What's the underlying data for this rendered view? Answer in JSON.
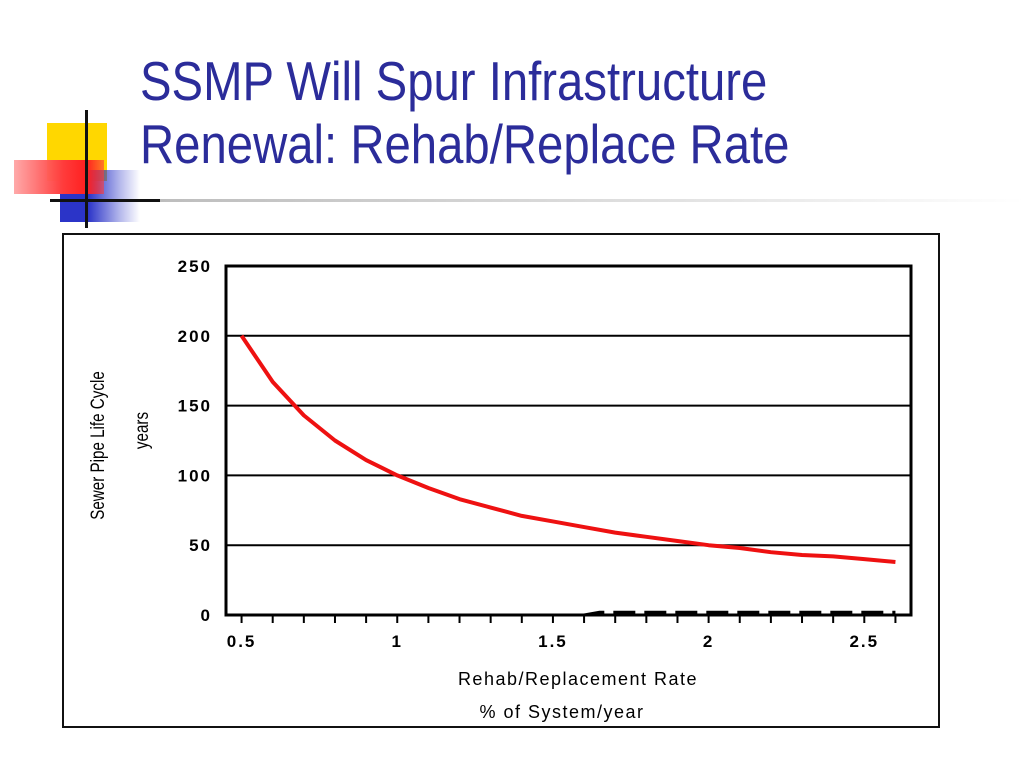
{
  "slide": {
    "title": "SSMP Will Spur Infrastructure\nRenewal: Rehab/Replace Rate"
  },
  "chart_data": {
    "type": "line",
    "xlabel_line1": "Rehab/Replacement Rate",
    "xlabel_line2": "% of System/year",
    "ylabel_line1": "Sewer Pipe Life Cycle",
    "ylabel_line2": "years",
    "xlim": [
      0.45,
      2.65
    ],
    "ylim": [
      0,
      250
    ],
    "x_ticks": [
      "0.5",
      "1",
      "1.5",
      "2",
      "2.5"
    ],
    "x_tick_values": [
      0.5,
      1,
      1.5,
      2,
      2.5
    ],
    "y_ticks": [
      "250",
      "200",
      "150",
      "100",
      "50",
      "0"
    ],
    "y_tick_values": [
      250,
      200,
      150,
      100,
      50,
      0
    ],
    "grid": true,
    "legend": "none",
    "series": [
      {
        "color": "#ee1111",
        "x": [
          0.5,
          0.6,
          0.7,
          0.8,
          0.9,
          1.0,
          1.1,
          1.2,
          1.3,
          1.4,
          1.5,
          1.6,
          1.7,
          1.8,
          1.9,
          2.0,
          2.1,
          2.2,
          2.3,
          2.4,
          2.5,
          2.6
        ],
        "y": [
          200,
          167,
          143,
          125,
          111,
          100,
          91,
          83,
          77,
          71,
          67,
          63,
          59,
          56,
          53,
          50,
          48,
          45,
          43,
          42,
          40,
          38
        ]
      },
      {
        "color": "#000000",
        "style": "dashed",
        "x": [
          0.5,
          1.6,
          1.65,
          2.6
        ],
        "y": [
          0,
          0,
          2,
          2
        ]
      }
    ]
  }
}
